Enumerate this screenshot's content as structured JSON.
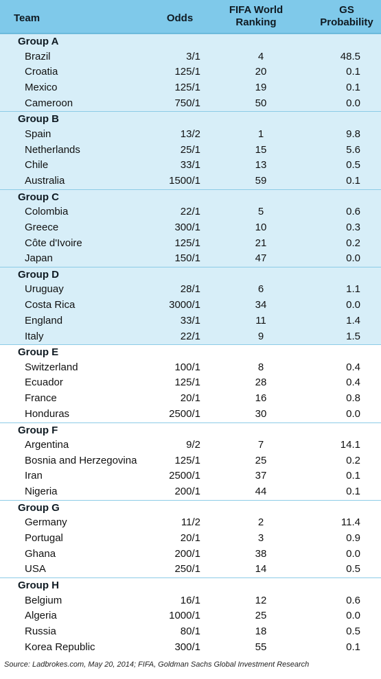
{
  "columns": {
    "team": "Team",
    "odds": "Odds",
    "fifa_line1": "FIFA World",
    "fifa_line2": "Ranking",
    "gs_line1": "GS",
    "gs_line2": "Probability"
  },
  "groups": [
    {
      "name": "Group A",
      "rows": [
        {
          "team": "Brazil",
          "odds": "3/1",
          "rank": "4",
          "gs": "48.5"
        },
        {
          "team": "Croatia",
          "odds": "125/1",
          "rank": "20",
          "gs": "0.1"
        },
        {
          "team": "Mexico",
          "odds": "125/1",
          "rank": "19",
          "gs": "0.1"
        },
        {
          "team": "Cameroon",
          "odds": "750/1",
          "rank": "50",
          "gs": "0.0"
        }
      ]
    },
    {
      "name": "Group B",
      "rows": [
        {
          "team": "Spain",
          "odds": "13/2",
          "rank": "1",
          "gs": "9.8"
        },
        {
          "team": "Netherlands",
          "odds": "25/1",
          "rank": "15",
          "gs": "5.6"
        },
        {
          "team": "Chile",
          "odds": "33/1",
          "rank": "13",
          "gs": "0.5"
        },
        {
          "team": "Australia",
          "odds": "1500/1",
          "rank": "59",
          "gs": "0.1"
        }
      ]
    },
    {
      "name": "Group C",
      "rows": [
        {
          "team": "Colombia",
          "odds": "22/1",
          "rank": "5",
          "gs": "0.6"
        },
        {
          "team": "Greece",
          "odds": "300/1",
          "rank": "10",
          "gs": "0.3"
        },
        {
          "team": "Côte d'Ivoire",
          "odds": "125/1",
          "rank": "21",
          "gs": "0.2"
        },
        {
          "team": "Japan",
          "odds": "150/1",
          "rank": "47",
          "gs": "0.0"
        }
      ]
    },
    {
      "name": "Group D",
      "rows": [
        {
          "team": "Uruguay",
          "odds": "28/1",
          "rank": "6",
          "gs": "1.1"
        },
        {
          "team": "Costa Rica",
          "odds": "3000/1",
          "rank": "34",
          "gs": "0.0"
        },
        {
          "team": "England",
          "odds": "33/1",
          "rank": "11",
          "gs": "1.4"
        },
        {
          "team": "Italy",
          "odds": "22/1",
          "rank": "9",
          "gs": "1.5"
        }
      ]
    },
    {
      "name": "Group E",
      "rows": [
        {
          "team": "Switzerland",
          "odds": "100/1",
          "rank": "8",
          "gs": "0.4"
        },
        {
          "team": "Ecuador",
          "odds": "125/1",
          "rank": "28",
          "gs": "0.4"
        },
        {
          "team": "France",
          "odds": "20/1",
          "rank": "16",
          "gs": "0.8"
        },
        {
          "team": "Honduras",
          "odds": "2500/1",
          "rank": "30",
          "gs": "0.0"
        }
      ]
    },
    {
      "name": "Group F",
      "rows": [
        {
          "team": "Argentina",
          "odds": "9/2",
          "rank": "7",
          "gs": "14.1"
        },
        {
          "team": "Bosnia and Herzegovina",
          "odds": "125/1",
          "rank": "25",
          "gs": "0.2"
        },
        {
          "team": "Iran",
          "odds": "2500/1",
          "rank": "37",
          "gs": "0.1"
        },
        {
          "team": "Nigeria",
          "odds": "200/1",
          "rank": "44",
          "gs": "0.1"
        }
      ]
    },
    {
      "name": "Group G",
      "rows": [
        {
          "team": "Germany",
          "odds": "11/2",
          "rank": "2",
          "gs": "11.4"
        },
        {
          "team": "Portugal",
          "odds": "20/1",
          "rank": "3",
          "gs": "0.9"
        },
        {
          "team": "Ghana",
          "odds": "200/1",
          "rank": "38",
          "gs": "0.0"
        },
        {
          "team": "USA",
          "odds": "250/1",
          "rank": "14",
          "gs": "0.5"
        }
      ]
    },
    {
      "name": "Group H",
      "rows": [
        {
          "team": "Belgium",
          "odds": "16/1",
          "rank": "12",
          "gs": "0.6"
        },
        {
          "team": "Algeria",
          "odds": "1000/1",
          "rank": "25",
          "gs": "0.0"
        },
        {
          "team": "Russia",
          "odds": "80/1",
          "rank": "18",
          "gs": "0.5"
        },
        {
          "team": "Korea Republic",
          "odds": "300/1",
          "rank": "55",
          "gs": "0.1"
        }
      ]
    }
  ],
  "source": "Source: Ladbrokes.com, May 20, 2014; FIFA, Goldman Sachs Global Investment Research",
  "colors": {
    "header_bg": "#7fc9ea",
    "shaded_section_bg": "#d7eef8"
  }
}
